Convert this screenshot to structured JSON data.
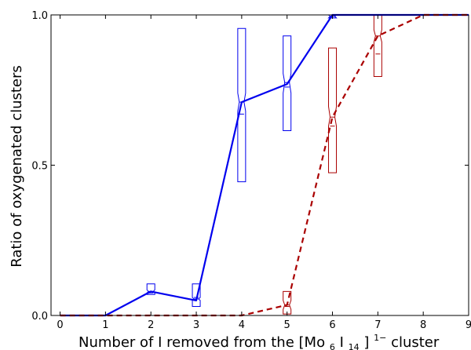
{
  "chart_data": {
    "type": "line",
    "title": "",
    "xlabel": {
      "prefix": "Number of I removed from the ",
      "formula_parts": [
        "[Mo",
        "6",
        "I",
        "14",
        "]",
        "1−"
      ],
      "suffix": "  cluster"
    },
    "ylabel": "Ratio of oxygenated clusters",
    "xlim": [
      -0.2,
      9
    ],
    "ylim": [
      0.0,
      1.0
    ],
    "xticks": [
      "0",
      "1",
      "2",
      "3",
      "4",
      "5",
      "6",
      "7",
      "8",
      "9"
    ],
    "yticks": [
      "0.0",
      "0.5",
      "1.0"
    ],
    "grid": false,
    "legend": "none",
    "series": [
      {
        "color": "#0000ee",
        "linestyle": "solid",
        "x": [
          0,
          1,
          2,
          3,
          4,
          5,
          6,
          7,
          8,
          9
        ],
        "y": [
          0.0,
          0.0,
          0.08,
          0.05,
          0.71,
          0.77,
          1.0,
          1.0,
          1.0,
          1.0
        ],
        "boxes": [
          {
            "x": 2,
            "q1": 0.07,
            "median": 0.08,
            "q3": 0.105,
            "mean": 0.075,
            "notch_lo": 0.075,
            "notch_hi": 0.085
          },
          {
            "x": 3,
            "q1": 0.03,
            "median": 0.055,
            "q3": 0.105,
            "mean": 0.06,
            "notch_lo": 0.05,
            "notch_hi": 0.06
          },
          {
            "x": 4,
            "q1": 0.445,
            "median": 0.71,
            "q3": 0.955,
            "mean": 0.67,
            "notch_lo": 0.68,
            "notch_hi": 0.74
          },
          {
            "x": 5,
            "q1": 0.615,
            "median": 0.775,
            "q3": 0.93,
            "mean": 0.76,
            "notch_lo": 0.74,
            "notch_hi": 0.805
          },
          {
            "x": 6,
            "q1": 0.99,
            "median": 0.995,
            "q3": 1.0,
            "mean": 0.995,
            "notch_lo": 0.99,
            "notch_hi": 1.0
          }
        ]
      },
      {
        "color": "#aa0000",
        "linestyle": "dashed",
        "x": [
          0,
          1,
          2,
          3,
          4,
          5,
          6,
          7,
          8,
          9
        ],
        "y": [
          0.0,
          0.0,
          0.0,
          0.0,
          0.0,
          0.035,
          0.66,
          0.93,
          1.0,
          1.0
        ],
        "boxes": [
          {
            "x": 5,
            "q1": 0.005,
            "median": 0.035,
            "q3": 0.08,
            "mean": 0.03,
            "notch_lo": 0.02,
            "notch_hi": 0.05
          },
          {
            "x": 6,
            "q1": 0.475,
            "median": 0.66,
            "q3": 0.89,
            "mean": 0.63,
            "notch_lo": 0.63,
            "notch_hi": 0.695
          },
          {
            "x": 7,
            "q1": 0.795,
            "median": 0.93,
            "q3": 1.0,
            "mean": 0.87,
            "notch_lo": 0.91,
            "notch_hi": 0.95
          }
        ]
      }
    ]
  }
}
